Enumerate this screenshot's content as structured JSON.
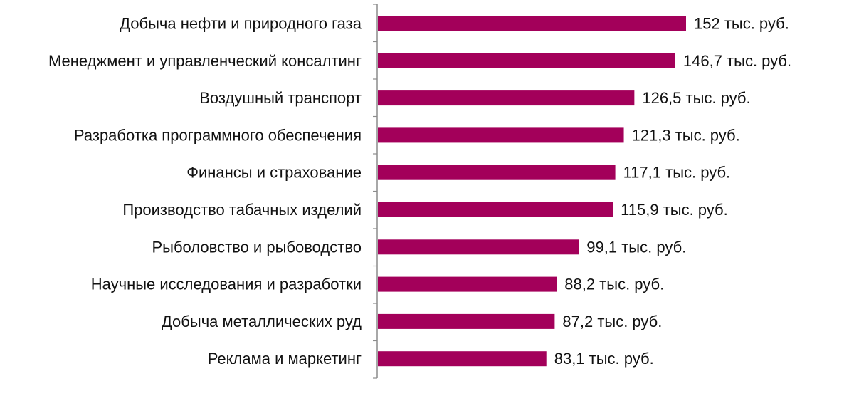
{
  "chart_data": {
    "type": "bar",
    "orientation": "horizontal",
    "title": "",
    "xlabel": "",
    "ylabel": "",
    "categories": [
      "Добыча нефти и природного газа",
      "Менеджмент и управленческий консалтинг",
      "Воздушный транспорт",
      "Разработка программного обеспечения",
      "Финансы и страхование",
      "Производство табачных изделий",
      "Рыболовство и рыбоводство",
      "Научные исследования и разработки",
      "Добыча металлических руд",
      "Реклама и маркетинг"
    ],
    "values": [
      152,
      146.7,
      126.5,
      121.3,
      117.1,
      115.9,
      99.1,
      88.2,
      87.2,
      83.1
    ],
    "data_labels": [
      "152 тыс. руб.",
      "146,7 тыс. руб.",
      "126,5 тыс. руб.",
      "121,3 тыс. руб.",
      "117,1 тыс. руб.",
      "115,9 тыс. руб.",
      "99,1 тыс. руб.",
      "88,2 тыс. руб.",
      "87,2 тыс. руб.",
      "83,1 тыс. руб."
    ],
    "xlim": [
      0,
      152
    ],
    "grid": false,
    "legend": "none",
    "bar_color": "#a3005a"
  }
}
